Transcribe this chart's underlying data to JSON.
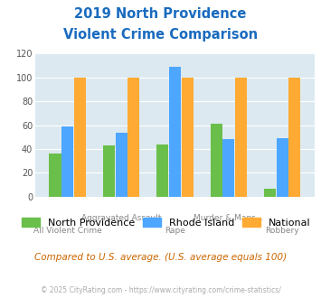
{
  "title_line1": "2019 North Providence",
  "title_line2": "Violent Crime Comparison",
  "title_color": "#1a6bbf",
  "categories": [
    "All Violent Crime",
    "Aggravated Assault",
    "Rape",
    "Murder & Mans...",
    "Robbery"
  ],
  "top_labels": [
    "",
    "Aggravated Assault",
    "",
    "Murder & Mans...",
    ""
  ],
  "bottom_labels": [
    "All Violent Crime",
    "",
    "Rape",
    "",
    "Robbery"
  ],
  "series_names": [
    "North Providence",
    "Rhode Island",
    "National"
  ],
  "values": [
    [
      36,
      43,
      44,
      61,
      7
    ],
    [
      59,
      54,
      109,
      48,
      49
    ],
    [
      100,
      100,
      100,
      100,
      100
    ]
  ],
  "colors": [
    "#6abf4b",
    "#4da6ff",
    "#ffaa33"
  ],
  "ylim": [
    0,
    120
  ],
  "yticks": [
    0,
    20,
    40,
    60,
    80,
    100,
    120
  ],
  "plot_bg_color": "#dce9f0",
  "grid_color": "#ffffff",
  "footer_text": "Compared to U.S. average. (U.S. average equals 100)",
  "footer_color": "#cc6600",
  "copyright_text": "© 2025 CityRating.com - https://www.cityrating.com/crime-statistics/",
  "copyright_color": "#aaaaaa",
  "bar_width": 0.22,
  "label_fontsize": 6.5,
  "ytick_fontsize": 7,
  "title_fontsize": 10.5,
  "legend_fontsize": 8,
  "footer_fontsize": 7.5,
  "copyright_fontsize": 5.5
}
